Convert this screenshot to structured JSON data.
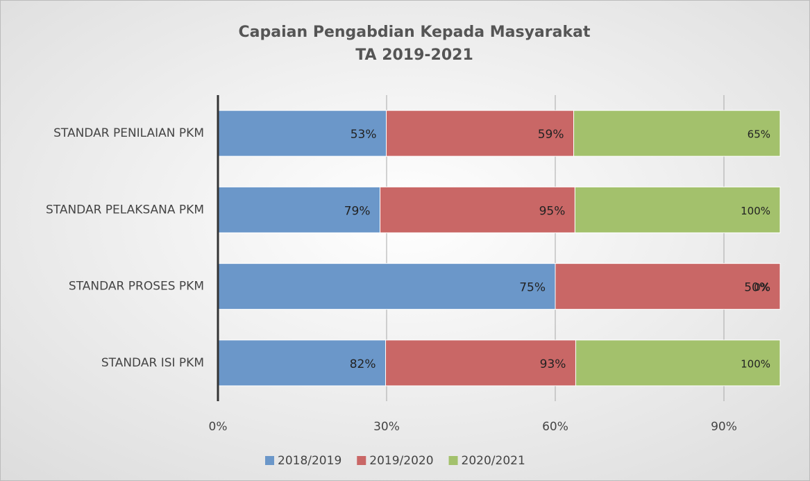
{
  "chart_data": {
    "type": "bar",
    "orientation": "horizontal",
    "stacked": "percent",
    "title": [
      "Capaian Pengabdian Kepada Masyarakat",
      "TA 2019-2021"
    ],
    "categories": [
      "STANDAR PENILAIAN PKM",
      "STANDAR PELAKSANA PKM",
      "STANDAR PROSES PKM",
      "STANDAR ISI PKM"
    ],
    "series": [
      {
        "name": "2018/2019",
        "color": "#6b97c9",
        "values": [
          53,
          79,
          75,
          82
        ],
        "value_labels": [
          "53%",
          "79%",
          "75%",
          "82%"
        ]
      },
      {
        "name": "2019/2020",
        "color": "#c96766",
        "values": [
          59,
          95,
          50,
          93
        ],
        "value_labels": [
          "59%",
          "95%",
          "50%",
          "93%"
        ]
      },
      {
        "name": "2020/2021",
        "color": "#a3c16c",
        "values": [
          65,
          100,
          0,
          100
        ],
        "value_labels": [
          "65%",
          "100%",
          "0%",
          "100%"
        ]
      }
    ],
    "xlim": [
      0,
      100
    ],
    "xticks": [
      {
        "value": 0,
        "label": "0%"
      },
      {
        "value": 30,
        "label": "30%"
      },
      {
        "value": 60,
        "label": "60%"
      },
      {
        "value": 90,
        "label": "90%"
      }
    ],
    "grid": true,
    "legend": "bottom"
  }
}
